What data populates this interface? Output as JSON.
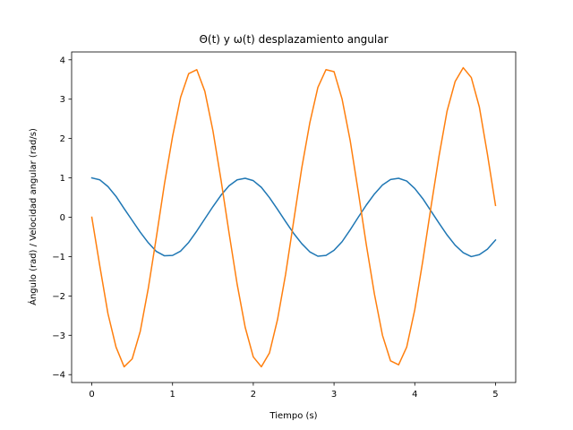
{
  "chart_data": {
    "type": "line",
    "title": "Θ(t) y ω(t) desplazamiento angular",
    "xlabel": "Tiempo (s)",
    "ylabel": "Ángulo (rad) / Velocidad angular (rad/s)",
    "xlim": [
      -0.25,
      5.25
    ],
    "ylim": [
      -4.2,
      4.2
    ],
    "xticks": [
      0,
      1,
      2,
      3,
      4,
      5
    ],
    "xtick_labels": [
      "0",
      "1",
      "2",
      "3",
      "4",
      "5"
    ],
    "yticks": [
      -4,
      -3,
      -2,
      -1,
      0,
      1,
      2,
      3,
      4
    ],
    "ytick_labels": [
      "−4",
      "−3",
      "−2",
      "−1",
      "0",
      "1",
      "2",
      "3",
      "4"
    ],
    "grid": false,
    "legend": "none",
    "x": [
      0.0,
      0.1,
      0.2,
      0.3,
      0.4,
      0.5,
      0.6,
      0.7,
      0.8,
      0.9,
      1.0,
      1.1,
      1.2,
      1.3,
      1.4,
      1.5,
      1.6,
      1.7,
      1.8,
      1.9,
      2.0,
      2.1,
      2.2,
      2.3,
      2.4,
      2.5,
      2.6,
      2.7,
      2.8,
      2.9,
      3.0,
      3.1,
      3.2,
      3.3,
      3.4,
      3.5,
      3.6,
      3.7,
      3.8,
      3.9,
      4.0,
      4.1,
      4.2,
      4.3,
      4.4,
      4.5,
      4.6,
      4.7,
      4.8,
      4.9,
      5.0
    ],
    "series": [
      {
        "color": "#1f77b4",
        "values": [
          1.0,
          0.95,
          0.78,
          0.53,
          0.22,
          -0.08,
          -0.38,
          -0.65,
          -0.87,
          -0.98,
          -0.97,
          -0.86,
          -0.64,
          -0.35,
          -0.04,
          0.27,
          0.56,
          0.8,
          0.95,
          0.99,
          0.93,
          0.76,
          0.5,
          0.2,
          -0.11,
          -0.41,
          -0.67,
          -0.88,
          -0.99,
          -0.97,
          -0.84,
          -0.62,
          -0.32,
          0.0,
          0.31,
          0.59,
          0.82,
          0.96,
          0.99,
          0.92,
          0.73,
          0.47,
          0.16,
          -0.15,
          -0.45,
          -0.71,
          -0.9,
          -1.0,
          -0.95,
          -0.81,
          -0.58
        ]
      },
      {
        "color": "#ff7f0e",
        "values": [
          0.0,
          -1.25,
          -2.45,
          -3.3,
          -3.8,
          -3.6,
          -2.9,
          -1.8,
          -0.5,
          0.85,
          2.05,
          3.05,
          3.65,
          3.75,
          3.2,
          2.2,
          0.95,
          -0.4,
          -1.7,
          -2.8,
          -3.55,
          -3.8,
          -3.45,
          -2.6,
          -1.45,
          -0.1,
          1.25,
          2.4,
          3.3,
          3.75,
          3.7,
          3.0,
          1.95,
          0.65,
          -0.7,
          -1.95,
          -3.0,
          -3.65,
          -3.75,
          -3.3,
          -2.35,
          -1.1,
          0.25,
          1.55,
          2.7,
          3.45,
          3.8,
          3.55,
          2.8,
          1.6,
          0.3
        ]
      }
    ]
  }
}
